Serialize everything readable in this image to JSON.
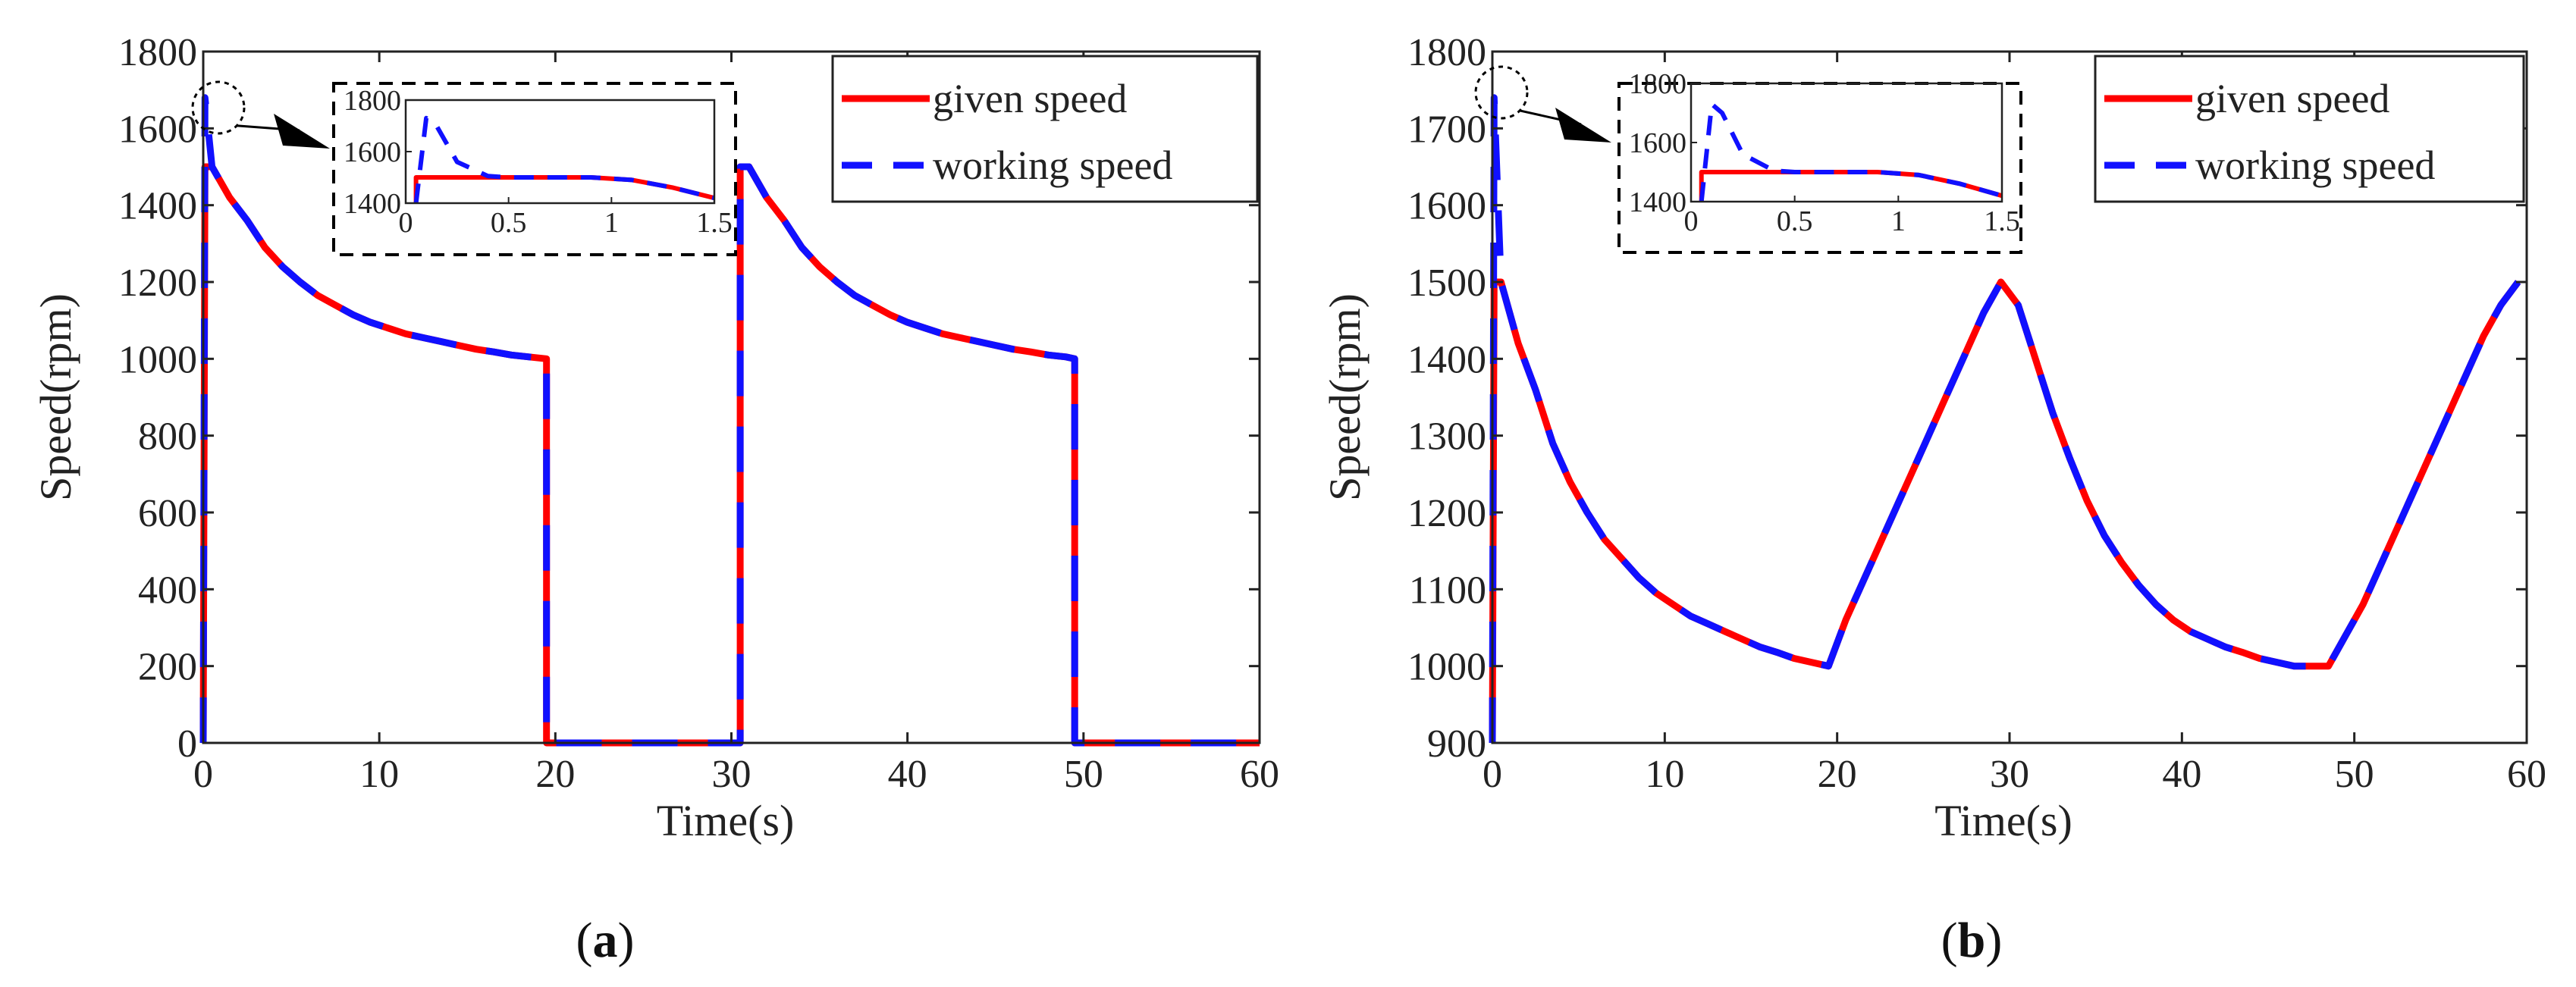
{
  "chart_data": [
    {
      "panel": "a",
      "type": "line",
      "xlabel": "Time(s)",
      "ylabel": "Speed(rpm)",
      "xlim": [
        0,
        60
      ],
      "ylim": [
        0,
        1800
      ],
      "xticks": [
        0,
        10,
        20,
        30,
        40,
        50,
        60
      ],
      "yticks": [
        0,
        200,
        400,
        600,
        800,
        1000,
        1200,
        1400,
        1600,
        1800
      ],
      "legend": {
        "position": "top-right",
        "entries": [
          "given speed",
          "working speed"
        ]
      },
      "series": [
        {
          "name": "given speed",
          "color": "#ff0000",
          "style": "solid",
          "x": [
            0,
            0.1,
            0.5,
            1.5,
            2.5,
            3.5,
            4.5,
            5.5,
            6.5,
            7.5,
            8.5,
            9.5,
            10.5,
            11.5,
            12.5,
            13.5,
            14.5,
            15.5,
            16.5,
            17.5,
            18.5,
            19.5,
            19.5,
            30.5,
            30.5,
            31.0,
            32.0,
            33.0,
            34.0,
            35.0,
            36.0,
            37.0,
            38.0,
            39.0,
            40.0,
            41.0,
            42.0,
            43.0,
            44.0,
            45.0,
            46.0,
            47.0,
            48.0,
            49.0,
            49.5,
            49.5,
            60
          ],
          "y": [
            0,
            1500,
            1500,
            1420,
            1360,
            1290,
            1240,
            1200,
            1165,
            1140,
            1115,
            1095,
            1080,
            1065,
            1055,
            1045,
            1035,
            1025,
            1018,
            1010,
            1005,
            1000,
            0,
            0,
            1500,
            1500,
            1420,
            1360,
            1290,
            1240,
            1200,
            1165,
            1140,
            1115,
            1095,
            1080,
            1065,
            1055,
            1045,
            1035,
            1025,
            1018,
            1010,
            1005,
            1000,
            0,
            0
          ]
        },
        {
          "name": "working speed",
          "color": "#1010ff",
          "style": "dashed",
          "x": [
            0,
            0.1,
            0.5,
            1.5,
            2.5,
            3.5,
            4.5,
            5.5,
            6.5,
            7.5,
            8.5,
            9.5,
            10.5,
            11.5,
            12.5,
            13.5,
            14.5,
            15.5,
            16.5,
            17.5,
            18.5,
            19.5,
            19.5,
            30.5,
            30.5,
            31.0,
            32.0,
            33.0,
            34.0,
            35.0,
            36.0,
            37.0,
            38.0,
            39.0,
            40.0,
            41.0,
            42.0,
            43.0,
            44.0,
            45.0,
            46.0,
            47.0,
            48.0,
            49.0,
            49.5,
            49.5,
            60
          ],
          "y": [
            0,
            1680,
            1500,
            1420,
            1360,
            1290,
            1240,
            1200,
            1165,
            1140,
            1115,
            1095,
            1080,
            1065,
            1055,
            1045,
            1035,
            1025,
            1018,
            1010,
            1005,
            1000,
            0,
            0,
            1500,
            1500,
            1420,
            1360,
            1290,
            1240,
            1200,
            1165,
            1140,
            1115,
            1095,
            1080,
            1065,
            1055,
            1045,
            1035,
            1025,
            1018,
            1010,
            1005,
            1000,
            0,
            0
          ]
        }
      ],
      "inset": {
        "xlim": [
          0,
          1.5
        ],
        "ylim": [
          1400,
          1800
        ],
        "xticks": [
          0,
          0.5,
          1,
          1.5
        ],
        "yticks": [
          1400,
          1600,
          1800
        ],
        "series": [
          {
            "name": "given speed",
            "x": [
              0.05,
              0.05,
              0.5,
              0.9,
              1.1,
              1.3,
              1.5
            ],
            "y": [
              1400,
              1500,
              1500,
              1500,
              1490,
              1460,
              1420
            ]
          },
          {
            "name": "working speed",
            "x": [
              0.05,
              0.1,
              0.15,
              0.25,
              0.4,
              0.5,
              0.9,
              1.1,
              1.3,
              1.5
            ],
            "y": [
              1400,
              1730,
              1700,
              1560,
              1505,
              1500,
              1500,
              1490,
              1460,
              1420
            ]
          }
        ]
      }
    },
    {
      "panel": "b",
      "type": "line",
      "xlabel": "Time(s)",
      "ylabel": "Speed(rpm)",
      "xlim": [
        0,
        60
      ],
      "ylim": [
        900,
        1800
      ],
      "xticks": [
        0,
        10,
        20,
        30,
        40,
        50,
        60
      ],
      "yticks": [
        900,
        1000,
        1100,
        1200,
        1300,
        1400,
        1500,
        1600,
        1700,
        1800
      ],
      "legend": {
        "position": "top-right",
        "entries": [
          "given speed",
          "working speed"
        ]
      },
      "series": [
        {
          "name": "given speed",
          "color": "#ff0000",
          "style": "solid",
          "x": [
            0,
            0.1,
            0.5,
            1.5,
            2.5,
            3.5,
            4.5,
            5.5,
            6.5,
            7.5,
            8.5,
            9.5,
            10.5,
            11.5,
            12.5,
            13.5,
            14.5,
            15.5,
            16.5,
            17.5,
            18.5,
            19.5,
            20.5,
            21.5,
            22.5,
            23.5,
            24.5,
            25.5,
            26.5,
            27.5,
            28.5,
            29.5,
            30.5,
            31.5,
            32.5,
            33.5,
            34.5,
            35.5,
            36.5,
            37.5,
            38.5,
            39.5,
            40.5,
            41.5,
            42.5,
            43.5,
            44.5,
            45.5,
            46.5,
            47.5,
            48.5,
            49.5,
            50.5,
            51.5,
            52.5,
            53.5,
            54.5,
            55.5,
            56.5,
            57.5,
            58.5,
            59.5
          ],
          "y": [
            900,
            1500,
            1500,
            1420,
            1360,
            1290,
            1240,
            1200,
            1165,
            1140,
            1115,
            1095,
            1080,
            1065,
            1055,
            1045,
            1035,
            1025,
            1018,
            1010,
            1005,
            1000,
            1060,
            1110,
            1160,
            1210,
            1260,
            1310,
            1360,
            1410,
            1460,
            1500,
            1470,
            1400,
            1330,
            1270,
            1215,
            1170,
            1135,
            1105,
            1080,
            1060,
            1045,
            1035,
            1025,
            1018,
            1010,
            1005,
            1000,
            1000,
            1000,
            1040,
            1080,
            1130,
            1180,
            1230,
            1280,
            1330,
            1380,
            1430,
            1470,
            1500
          ]
        },
        {
          "name": "working speed",
          "color": "#1010ff",
          "style": "dashed",
          "x": [
            0,
            0.1,
            0.5,
            1.5,
            2.5,
            3.5,
            4.5,
            5.5,
            6.5,
            7.5,
            8.5,
            9.5,
            10.5,
            11.5,
            12.5,
            13.5,
            14.5,
            15.5,
            16.5,
            17.5,
            18.5,
            19.5,
            20.5,
            21.5,
            22.5,
            23.5,
            24.5,
            25.5,
            26.5,
            27.5,
            28.5,
            29.5,
            30.5,
            31.5,
            32.5,
            33.5,
            34.5,
            35.5,
            36.5,
            37.5,
            38.5,
            39.5,
            40.5,
            41.5,
            42.5,
            43.5,
            44.5,
            45.5,
            46.5,
            47.5,
            48.5,
            49.5,
            50.5,
            51.5,
            52.5,
            53.5,
            54.5,
            55.5,
            56.5,
            57.5,
            58.5,
            59.5
          ],
          "y": [
            900,
            1740,
            1500,
            1420,
            1360,
            1290,
            1240,
            1200,
            1165,
            1140,
            1115,
            1095,
            1080,
            1065,
            1055,
            1045,
            1035,
            1025,
            1018,
            1010,
            1005,
            1000,
            1060,
            1110,
            1160,
            1210,
            1260,
            1310,
            1360,
            1410,
            1460,
            1500,
            1470,
            1400,
            1330,
            1270,
            1215,
            1170,
            1135,
            1105,
            1080,
            1060,
            1045,
            1035,
            1025,
            1018,
            1010,
            1005,
            1000,
            1000,
            1000,
            1040,
            1080,
            1130,
            1180,
            1230,
            1280,
            1330,
            1380,
            1430,
            1470,
            1500
          ]
        }
      ],
      "inset": {
        "xlim": [
          0,
          1.5
        ],
        "ylim": [
          1400,
          1800
        ],
        "xticks": [
          0,
          0.5,
          1,
          1.5
        ],
        "yticks": [
          1400,
          1600,
          1800
        ],
        "series": [
          {
            "name": "given speed",
            "x": [
              0.05,
              0.05,
              0.5,
              0.9,
              1.1,
              1.3,
              1.5
            ],
            "y": [
              1400,
              1500,
              1500,
              1500,
              1490,
              1460,
              1420
            ]
          },
          {
            "name": "working speed",
            "x": [
              0.05,
              0.1,
              0.15,
              0.25,
              0.4,
              0.5,
              0.9,
              1.1,
              1.3,
              1.5
            ],
            "y": [
              1400,
              1730,
              1700,
              1560,
              1505,
              1500,
              1500,
              1490,
              1460,
              1420
            ]
          }
        ]
      }
    }
  ],
  "panel_labels": {
    "a": {
      "open": "(",
      "letter": "a",
      "close": ")"
    },
    "b": {
      "open": "(",
      "letter": "b",
      "close": ")"
    }
  },
  "colors": {
    "given": "#ff0000",
    "working": "#1010ff",
    "axis": "#222222"
  }
}
